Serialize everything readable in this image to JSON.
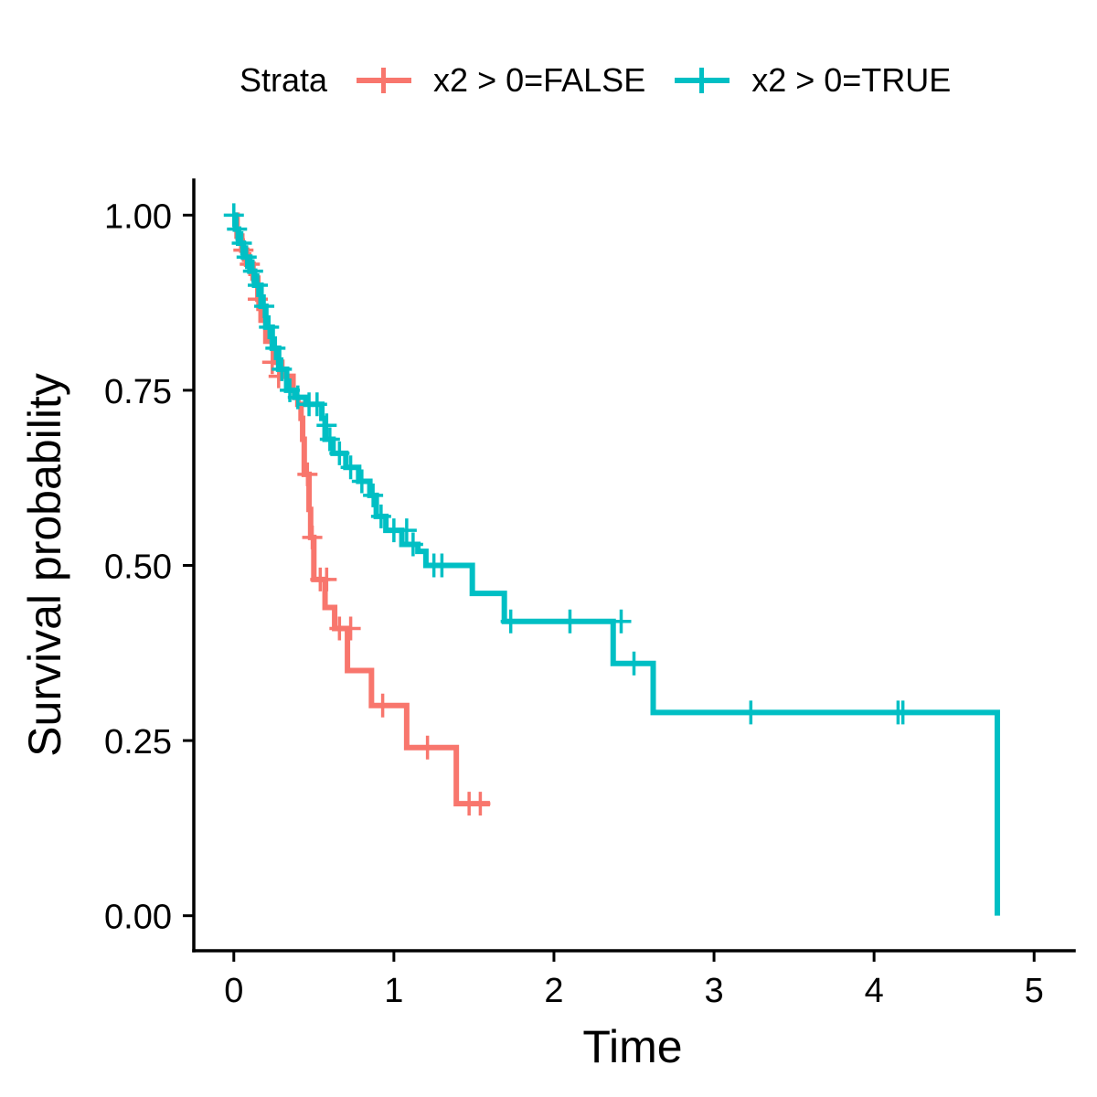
{
  "chart_data": {
    "type": "line",
    "subtype": "kaplan-meier-step",
    "xlabel": "Time",
    "ylabel": "Survival probability",
    "xlim": [
      -0.25,
      5.25
    ],
    "ylim": [
      -0.05,
      1.05
    ],
    "xticks": [
      0,
      1,
      2,
      3,
      4,
      5
    ],
    "yticks": [
      0.0,
      0.25,
      0.5,
      0.75,
      1.0
    ],
    "xtick_labels": [
      "0",
      "1",
      "2",
      "3",
      "4",
      "5"
    ],
    "ytick_labels": [
      "0.00",
      "0.25",
      "0.50",
      "0.75",
      "1.00"
    ],
    "grid": false,
    "legend": {
      "title": "Strata",
      "position": "top",
      "entries": [
        "x2 > 0=FALSE",
        "x2 > 0=TRUE"
      ]
    },
    "series": [
      {
        "name": "x2 > 0=FALSE",
        "color": "#F8766D",
        "steps": [
          [
            0,
            1.0
          ],
          [
            0.02,
            0.97
          ],
          [
            0.05,
            0.95
          ],
          [
            0.08,
            0.93
          ],
          [
            0.12,
            0.91
          ],
          [
            0.15,
            0.88
          ],
          [
            0.17,
            0.85
          ],
          [
            0.2,
            0.82
          ],
          [
            0.25,
            0.79
          ],
          [
            0.3,
            0.77
          ],
          [
            0.37,
            0.75
          ],
          [
            0.38,
            0.74
          ],
          [
            0.4,
            0.73
          ],
          [
            0.42,
            0.71
          ],
          [
            0.43,
            0.68
          ],
          [
            0.44,
            0.63
          ],
          [
            0.47,
            0.58
          ],
          [
            0.48,
            0.54
          ],
          [
            0.5,
            0.48
          ],
          [
            0.57,
            0.44
          ],
          [
            0.63,
            0.41
          ],
          [
            0.71,
            0.35
          ],
          [
            0.86,
            0.3
          ],
          [
            1.08,
            0.24
          ],
          [
            1.39,
            0.16
          ],
          [
            1.6,
            0.16
          ]
        ],
        "censored": [
          [
            0.06,
            0.95
          ],
          [
            0.1,
            0.93
          ],
          [
            0.15,
            0.88
          ],
          [
            0.24,
            0.79
          ],
          [
            0.28,
            0.77
          ],
          [
            0.46,
            0.63
          ],
          [
            0.49,
            0.54
          ],
          [
            0.54,
            0.48
          ],
          [
            0.58,
            0.48
          ],
          [
            0.66,
            0.41
          ],
          [
            0.73,
            0.41
          ],
          [
            0.93,
            0.3
          ],
          [
            1.21,
            0.24
          ],
          [
            1.47,
            0.16
          ],
          [
            1.54,
            0.16
          ]
        ]
      },
      {
        "name": "x2 > 0=TRUE",
        "color": "#00BFC4",
        "steps": [
          [
            0,
            1.0
          ],
          [
            0.01,
            0.98
          ],
          [
            0.03,
            0.96
          ],
          [
            0.06,
            0.94
          ],
          [
            0.1,
            0.92
          ],
          [
            0.13,
            0.9
          ],
          [
            0.17,
            0.87
          ],
          [
            0.2,
            0.84
          ],
          [
            0.24,
            0.81
          ],
          [
            0.28,
            0.78
          ],
          [
            0.33,
            0.75
          ],
          [
            0.38,
            0.74
          ],
          [
            0.45,
            0.73
          ],
          [
            0.55,
            0.71
          ],
          [
            0.57,
            0.68
          ],
          [
            0.62,
            0.66
          ],
          [
            0.7,
            0.64
          ],
          [
            0.78,
            0.62
          ],
          [
            0.85,
            0.6
          ],
          [
            0.89,
            0.57
          ],
          [
            0.95,
            0.55
          ],
          [
            1.05,
            0.53
          ],
          [
            1.15,
            0.52
          ],
          [
            1.2,
            0.5
          ],
          [
            1.49,
            0.46
          ],
          [
            1.69,
            0.42
          ],
          [
            2.37,
            0.36
          ],
          [
            2.62,
            0.29
          ],
          [
            4.77,
            0.0
          ]
        ],
        "censored": [
          [
            0.0,
            1.0
          ],
          [
            0.02,
            0.98
          ],
          [
            0.05,
            0.96
          ],
          [
            0.08,
            0.94
          ],
          [
            0.12,
            0.92
          ],
          [
            0.15,
            0.9
          ],
          [
            0.19,
            0.87
          ],
          [
            0.22,
            0.84
          ],
          [
            0.26,
            0.81
          ],
          [
            0.3,
            0.78
          ],
          [
            0.35,
            0.75
          ],
          [
            0.4,
            0.74
          ],
          [
            0.47,
            0.73
          ],
          [
            0.52,
            0.73
          ],
          [
            0.58,
            0.7
          ],
          [
            0.6,
            0.68
          ],
          [
            0.66,
            0.66
          ],
          [
            0.73,
            0.64
          ],
          [
            0.8,
            0.62
          ],
          [
            0.87,
            0.6
          ],
          [
            0.92,
            0.57
          ],
          [
            1.0,
            0.55
          ],
          [
            1.08,
            0.55
          ],
          [
            1.12,
            0.53
          ],
          [
            1.25,
            0.5
          ],
          [
            1.3,
            0.5
          ],
          [
            1.73,
            0.42
          ],
          [
            2.1,
            0.42
          ],
          [
            2.42,
            0.42
          ],
          [
            2.5,
            0.36
          ],
          [
            3.23,
            0.29
          ],
          [
            4.15,
            0.29
          ],
          [
            4.18,
            0.29
          ]
        ]
      }
    ]
  }
}
